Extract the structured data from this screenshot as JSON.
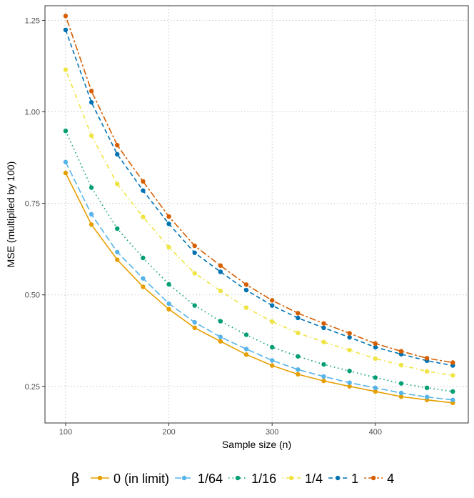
{
  "chart_data": {
    "type": "line",
    "title": "",
    "xlabel": "Sample size (n)",
    "ylabel": "MSE (multiplied by 100)",
    "xlim": [
      80,
      490
    ],
    "ylim": [
      0.15,
      1.29
    ],
    "x_ticks": [
      100,
      200,
      300,
      400
    ],
    "x_tick_labels": [
      "100",
      "200",
      "300",
      "400"
    ],
    "y_ticks": [
      0.25,
      0.5,
      0.75,
      1.0,
      1.25
    ],
    "y_tick_labels": [
      "0.25",
      "0.50",
      "0.75",
      "1.00",
      "1.25"
    ],
    "grid": true,
    "legend_title": "β",
    "legend_position": "bottom",
    "x": [
      100,
      125,
      150,
      175,
      200,
      225,
      250,
      275,
      300,
      325,
      350,
      375,
      400,
      425,
      450,
      475
    ],
    "series": [
      {
        "name": "0 (in limit)",
        "color": "#E69F00",
        "dash": "solid",
        "values": [
          0.833,
          0.692,
          0.596,
          0.522,
          0.461,
          0.41,
          0.373,
          0.337,
          0.307,
          0.283,
          0.265,
          0.25,
          0.236,
          0.222,
          0.213,
          0.205
        ]
      },
      {
        "name": "1/64",
        "color": "#56B4E9",
        "dash": "longdash",
        "values": [
          0.863,
          0.72,
          0.617,
          0.545,
          0.476,
          0.425,
          0.385,
          0.352,
          0.321,
          0.296,
          0.277,
          0.26,
          0.246,
          0.232,
          0.221,
          0.213
        ]
      },
      {
        "name": "1/16",
        "color": "#009E73",
        "dash": "dotted",
        "values": [
          0.948,
          0.793,
          0.681,
          0.601,
          0.529,
          0.471,
          0.428,
          0.391,
          0.357,
          0.332,
          0.31,
          0.292,
          0.274,
          0.258,
          0.246,
          0.236
        ]
      },
      {
        "name": "1/4",
        "color": "#F0E442",
        "dash": "dotdash",
        "values": [
          1.115,
          0.935,
          0.803,
          0.713,
          0.63,
          0.559,
          0.511,
          0.465,
          0.427,
          0.396,
          0.371,
          0.349,
          0.326,
          0.308,
          0.291,
          0.28
        ]
      },
      {
        "name": "1",
        "color": "#0072B2",
        "dash": "dashed",
        "values": [
          1.224,
          1.026,
          0.884,
          0.785,
          0.694,
          0.615,
          0.563,
          0.513,
          0.471,
          0.437,
          0.41,
          0.384,
          0.357,
          0.338,
          0.32,
          0.307
        ]
      },
      {
        "name": "4",
        "color": "#D55E00",
        "dash": "twodash",
        "values": [
          1.262,
          1.057,
          0.909,
          0.81,
          0.714,
          0.634,
          0.58,
          0.528,
          0.485,
          0.45,
          0.422,
          0.395,
          0.367,
          0.346,
          0.327,
          0.315
        ]
      }
    ]
  }
}
